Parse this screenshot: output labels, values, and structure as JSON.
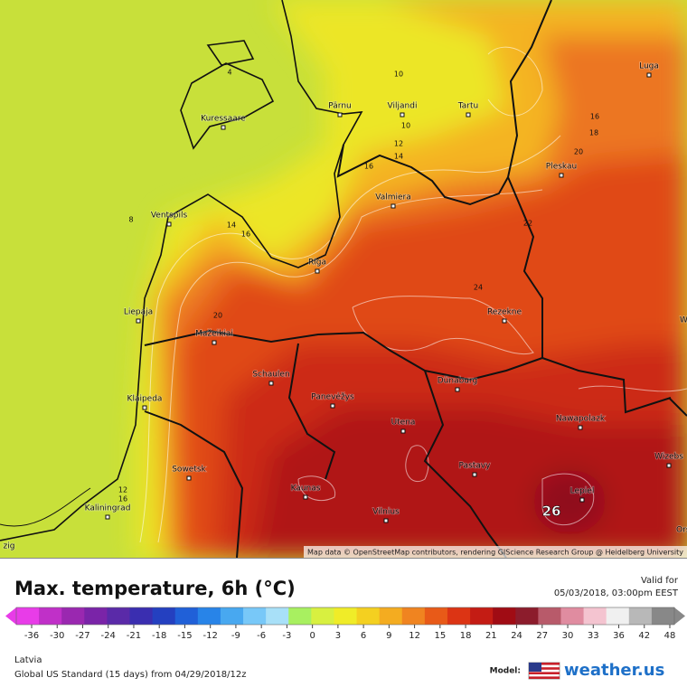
{
  "map": {
    "cities": [
      "Kuressaare",
      "Pärnu",
      "Viljandi",
      "Tartu",
      "Luga",
      "Pleskau",
      "Valmiera",
      "Ventspils",
      "Riga",
      "Liepaja",
      "Rezekne",
      "Mažeikiai",
      "Schaulen",
      "Dünaburg",
      "Klaipeda",
      "Panevėžys",
      "Utena",
      "Nawapolazk",
      "Wizebs",
      "Pastavy",
      "Sowetsk",
      "Kaunas",
      "Lepiel",
      "Vilnius",
      "Kaliningrad",
      "Orse",
      "We",
      "zig"
    ],
    "contour_labels": [
      "4",
      "10",
      "10",
      "12",
      "14",
      "16",
      "16",
      "18",
      "20",
      "8",
      "14",
      "16",
      "20",
      "22",
      "24",
      "12",
      "16",
      "26"
    ],
    "attribution": "Map data © OpenStreetMap contributors, rendering GIScience Research Group @ Heidelberg University"
  },
  "header": {
    "title": "Max. temperature, 6h (°C)",
    "valid_label": "Valid for",
    "valid_time": "05/03/2018, 03:00pm EEST"
  },
  "legend": {
    "ticks": [
      -36,
      -30,
      -27,
      -24,
      -21,
      -18,
      -15,
      -12,
      -9,
      -6,
      -3,
      0,
      3,
      6,
      9,
      12,
      15,
      18,
      21,
      24,
      27,
      30,
      33,
      36,
      42,
      48
    ],
    "colors": [
      "#e83ce8",
      "#c030c8",
      "#9a28b0",
      "#7a24a8",
      "#5a2aa8",
      "#3a2eb0",
      "#2440c0",
      "#2060d8",
      "#2884e8",
      "#48a8f0",
      "#78c8f8",
      "#a8e0f8",
      "#a8f060",
      "#d8f040",
      "#f0ec28",
      "#f4d020",
      "#f4ac20",
      "#f08420",
      "#e85a18",
      "#dc3414",
      "#c41c14",
      "#a00c14",
      "#8c1c2c",
      "#b85a6a",
      "#e08ca0",
      "#f4c4d0",
      "#f0f0f0",
      "#b8b8b8",
      "#888888"
    ]
  },
  "footer": {
    "region": "Latvia",
    "model_run": "Global US Standard (15 days) from 04/29/2018/12z",
    "model_label": "Model:",
    "brand": "weather.us"
  }
}
